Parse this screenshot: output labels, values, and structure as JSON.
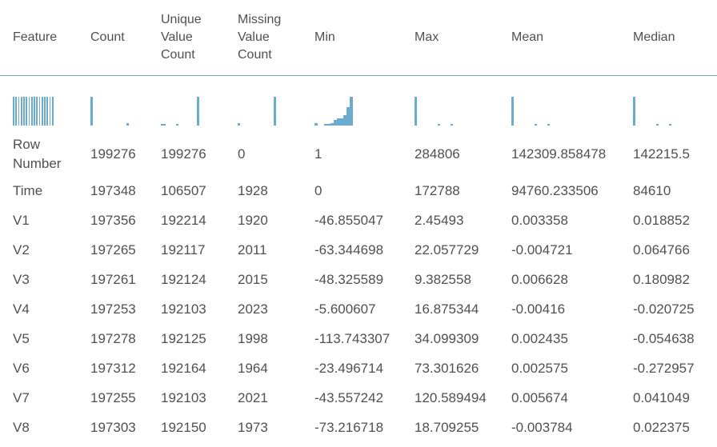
{
  "columns": [
    "Feature",
    "Count",
    "Unique Value Count",
    "Missing Value Count",
    "Min",
    "Max",
    "Mean",
    "Median"
  ],
  "histogram_color": "#6aabcf",
  "histograms": [
    [
      1,
      1,
      1,
      1,
      1,
      1,
      1,
      1,
      1,
      1,
      1,
      1,
      1,
      1,
      1,
      1
    ],
    [
      1,
      0,
      0,
      0,
      0,
      0,
      0,
      0,
      0,
      0,
      0,
      0,
      0,
      0,
      0.08
    ],
    [
      0.05,
      0.05,
      0,
      0,
      0,
      0,
      0.05,
      0,
      0,
      0,
      0,
      0,
      0,
      0,
      1
    ],
    [
      0.08,
      0,
      0,
      0,
      0,
      0,
      0,
      0,
      0,
      0,
      0,
      0,
      0,
      0,
      1
    ],
    [
      0.08,
      0,
      0,
      0.05,
      0.05,
      0.08,
      0.2,
      0.25,
      0.25,
      0.35,
      0.65,
      1
    ],
    [
      1,
      0,
      0,
      0,
      0,
      0,
      0,
      0,
      0,
      0.05,
      0,
      0,
      0,
      0,
      0.05
    ],
    [
      1,
      0,
      0,
      0,
      0,
      0,
      0,
      0,
      0,
      0.05,
      0,
      0,
      0,
      0,
      0.05
    ],
    [
      1,
      0,
      0,
      0,
      0,
      0,
      0,
      0,
      0,
      0.05,
      0,
      0,
      0,
      0,
      0.05
    ]
  ],
  "rows": [
    [
      "Row Number",
      "199276",
      "199276",
      "0",
      "1",
      "284806",
      "142309.858478",
      "142215.5"
    ],
    [
      "Time",
      "197348",
      "106507",
      "1928",
      "0",
      "172788",
      "94760.233506",
      "84610"
    ],
    [
      "V1",
      "197356",
      "192214",
      "1920",
      "-46.855047",
      "2.45493",
      "0.003358",
      "0.018852"
    ],
    [
      "V2",
      "197265",
      "192117",
      "2011",
      "-63.344698",
      "22.057729",
      "-0.004721",
      "0.064766"
    ],
    [
      "V3",
      "197261",
      "192124",
      "2015",
      "-48.325589",
      "9.382558",
      "0.006628",
      "0.180982"
    ],
    [
      "V4",
      "197253",
      "192103",
      "2023",
      "-5.600607",
      "16.875344",
      "-0.00416",
      "-0.020725"
    ],
    [
      "V5",
      "197278",
      "192125",
      "1998",
      "-113.743307",
      "34.099309",
      "0.002435",
      "-0.054638"
    ],
    [
      "V6",
      "197312",
      "192164",
      "1964",
      "-23.496714",
      "73.301626",
      "0.002575",
      "-0.272957"
    ],
    [
      "V7",
      "197255",
      "192103",
      "2021",
      "-43.557242",
      "120.589494",
      "0.005674",
      "0.041049"
    ],
    [
      "V8",
      "197303",
      "192150",
      "1973",
      "-73.216718",
      "18.709255",
      "-0.003784",
      "0.022375"
    ]
  ]
}
